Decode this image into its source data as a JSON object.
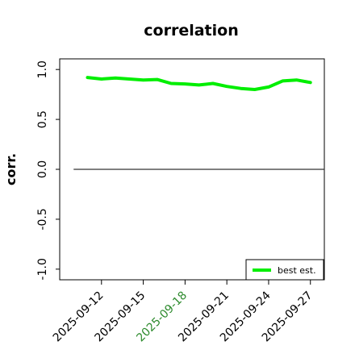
{
  "chart_data": {
    "type": "line",
    "title": "correlation",
    "ylabel": "corr.",
    "xlabel": "",
    "ylim": [
      -1.05,
      1.05
    ],
    "yticks": [
      {
        "value": 1.0,
        "label": "1.0"
      },
      {
        "value": 0.5,
        "label": "0.5"
      },
      {
        "value": 0.0,
        "label": "0.0"
      },
      {
        "value": -0.5,
        "label": "-0.5"
      },
      {
        "value": -1.0,
        "label": "-1.0"
      }
    ],
    "xlim": [
      "2025-09-09",
      "2025-09-28"
    ],
    "xticks": [
      {
        "value": "2025-09-12",
        "label": "2025-09-12",
        "color": "#000000"
      },
      {
        "value": "2025-09-15",
        "label": "2025-09-15",
        "color": "#000000"
      },
      {
        "value": "2025-09-18",
        "label": "2025-09-18",
        "color": "#2e8b2e"
      },
      {
        "value": "2025-09-21",
        "label": "2025-09-21",
        "color": "#000000"
      },
      {
        "value": "2025-09-24",
        "label": "2025-09-24",
        "color": "#000000"
      },
      {
        "value": "2025-09-27",
        "label": "2025-09-27",
        "color": "#000000"
      }
    ],
    "series": [
      {
        "name": "best est.",
        "color": "#00ee00",
        "x": [
          "2025-09-11",
          "2025-09-12",
          "2025-09-13",
          "2025-09-14",
          "2025-09-15",
          "2025-09-16",
          "2025-09-17",
          "2025-09-18",
          "2025-09-19",
          "2025-09-20",
          "2025-09-21",
          "2025-09-22",
          "2025-09-23",
          "2025-09-24",
          "2025-09-25",
          "2025-09-26",
          "2025-09-27"
        ],
        "y": [
          0.92,
          0.905,
          0.915,
          0.905,
          0.895,
          0.9,
          0.86,
          0.855,
          0.845,
          0.86,
          0.83,
          0.81,
          0.8,
          0.825,
          0.885,
          0.895,
          0.87
        ]
      }
    ],
    "reference_line": {
      "y": 0.0,
      "x": [
        "2025-09-10",
        "2025-09-27"
      ],
      "color": "#555555"
    },
    "legend": {
      "placement": "bottom-right"
    },
    "grid": false
  }
}
